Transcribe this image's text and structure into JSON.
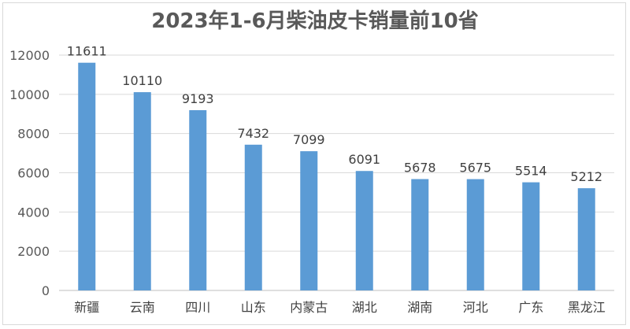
{
  "chart_data": {
    "type": "bar",
    "title": "2023年1-6月柴油皮卡销量前10省",
    "xlabel": "",
    "ylabel": "",
    "categories": [
      "新疆",
      "云南",
      "四川",
      "山东",
      "内蒙古",
      "湖北",
      "湖南",
      "河北",
      "广东",
      "黑龙江"
    ],
    "values": [
      11611,
      10110,
      9193,
      7432,
      7099,
      6091,
      5678,
      5675,
      5514,
      5212
    ],
    "ylim": [
      0,
      12000
    ],
    "yticks": [
      0,
      2000,
      4000,
      6000,
      8000,
      10000,
      12000
    ],
    "grid": true,
    "legend": "none",
    "bar_color": "#5b9bd5",
    "grid_color": "#d9d9d9"
  }
}
